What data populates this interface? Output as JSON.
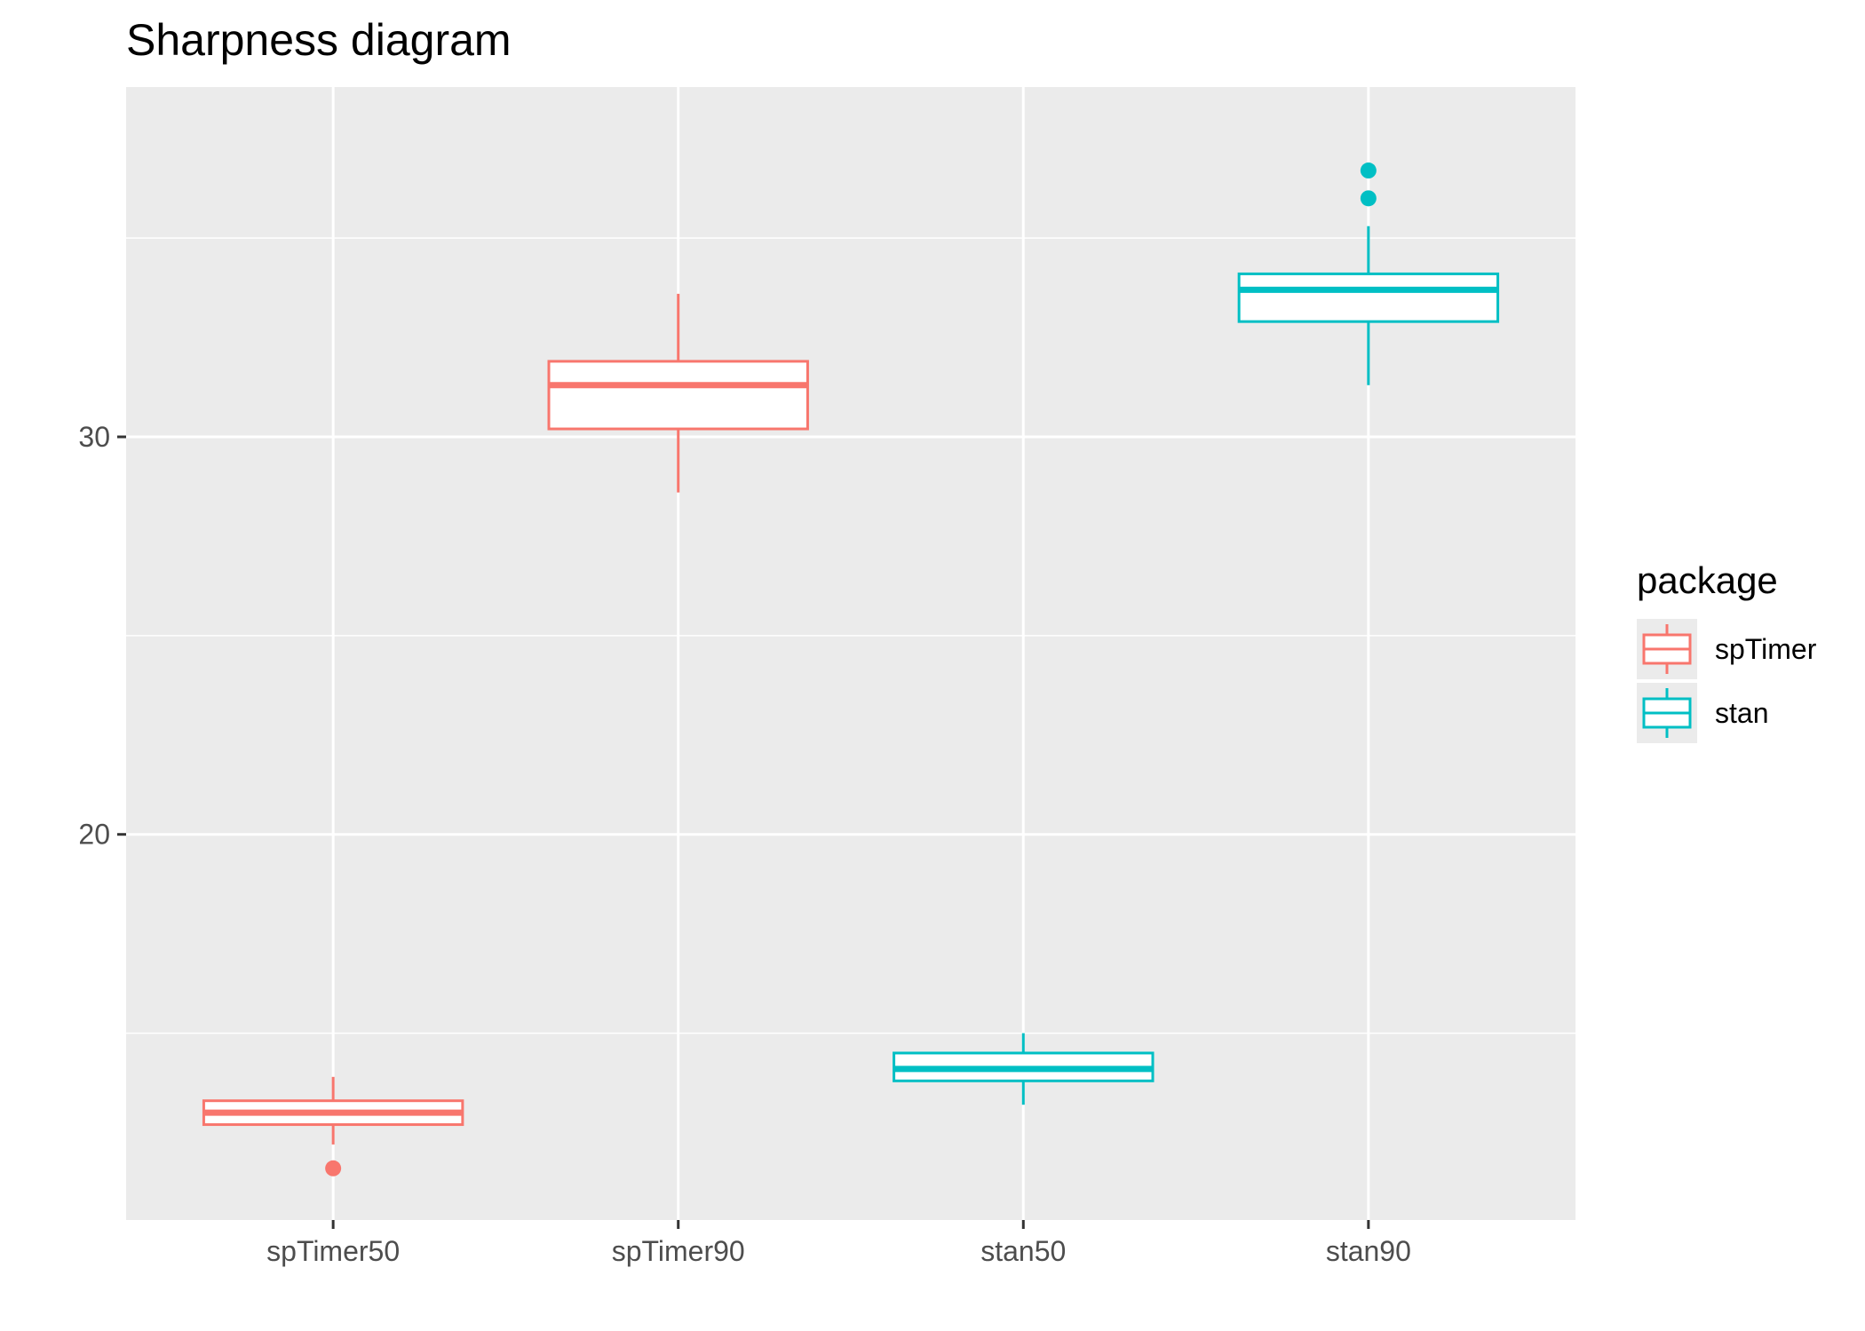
{
  "chart_data": {
    "type": "boxplot",
    "title": "Sharpness diagram",
    "xlabel": "",
    "ylabel": "",
    "categories": [
      "spTimer50",
      "spTimer90",
      "stan50",
      "stan90"
    ],
    "y_ticks": [
      20,
      30
    ],
    "ylim": [
      10.3,
      38.8
    ],
    "grid": true,
    "legend": {
      "title": "package",
      "position": "right",
      "entries": [
        "spTimer",
        "stan"
      ]
    },
    "colors": {
      "spTimer": "#F8766D",
      "stan": "#00BFC4"
    },
    "boxes": [
      {
        "category": "spTimer50",
        "package": "spTimer",
        "whisker_low": 12.2,
        "q1": 12.7,
        "median": 13.0,
        "q3": 13.3,
        "whisker_high": 13.9,
        "outliers": [
          11.6
        ]
      },
      {
        "category": "spTimer90",
        "package": "spTimer",
        "whisker_low": 28.6,
        "q1": 30.2,
        "median": 31.3,
        "q3": 31.9,
        "whisker_high": 33.6,
        "outliers": []
      },
      {
        "category": "stan50",
        "package": "stan",
        "whisker_low": 13.2,
        "q1": 13.8,
        "median": 14.1,
        "q3": 14.5,
        "whisker_high": 15.0,
        "outliers": []
      },
      {
        "category": "stan90",
        "package": "stan",
        "whisker_low": 31.3,
        "q1": 32.9,
        "median": 33.7,
        "q3": 34.1,
        "whisker_high": 35.3,
        "outliers": [
          36.0,
          36.7
        ]
      }
    ]
  }
}
